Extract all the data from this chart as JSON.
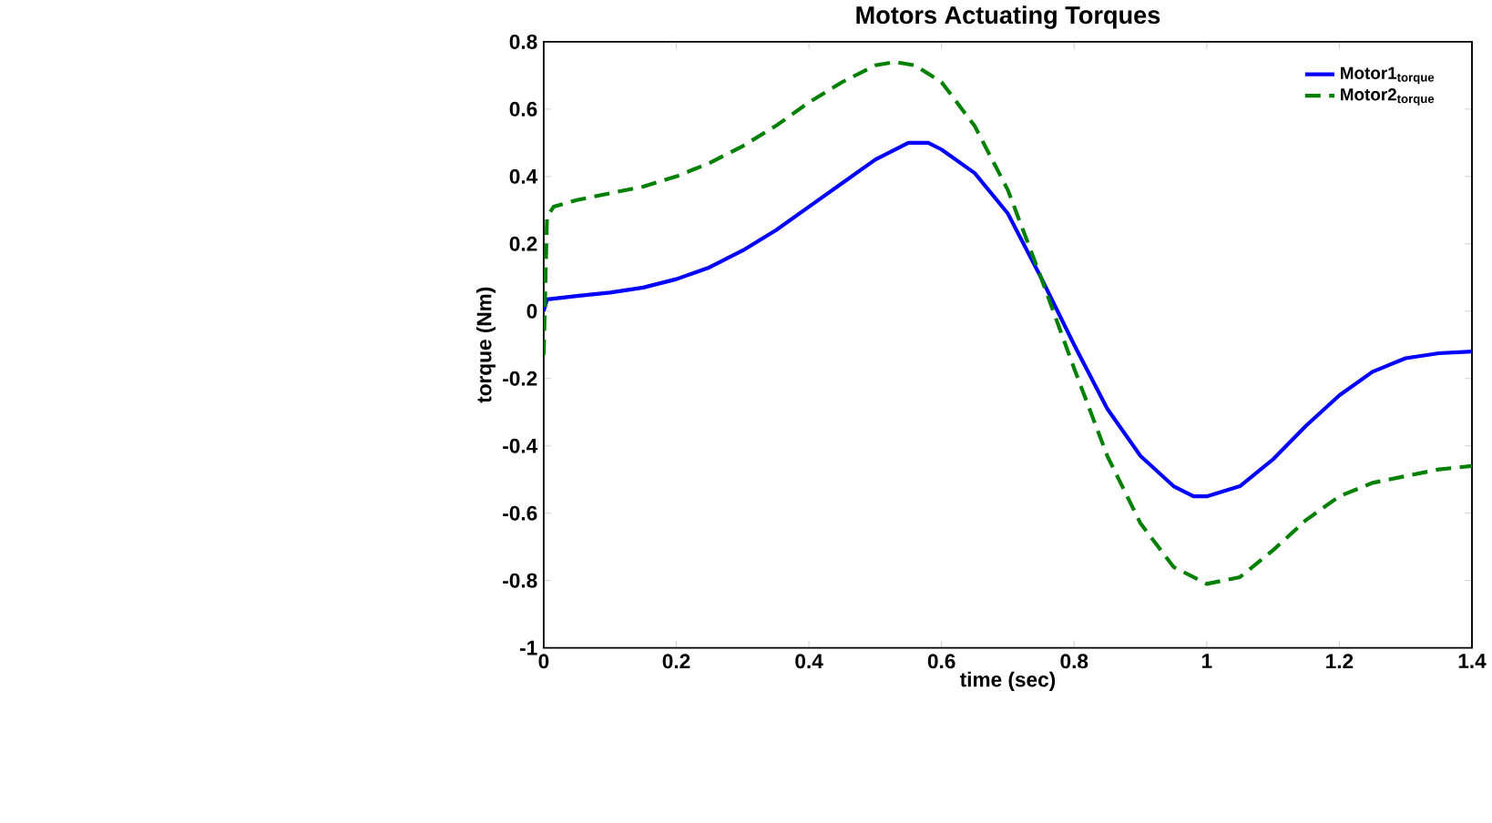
{
  "chart_data": {
    "type": "line",
    "title": "Motors Actuating Torques",
    "xlabel": "time (sec)",
    "ylabel": "torque (Nm)",
    "xlim": [
      0,
      1.4
    ],
    "ylim": [
      -1,
      0.8
    ],
    "xticks": [
      0,
      0.2,
      0.4,
      0.6,
      0.8,
      1,
      1.2,
      1.4
    ],
    "yticks": [
      -1,
      -0.8,
      -0.6,
      -0.4,
      -0.2,
      0,
      0.2,
      0.4,
      0.6,
      0.8
    ],
    "grid": false,
    "legend": "top right",
    "marker": "none",
    "series": [
      {
        "name": "Motor1$_{torque}$",
        "color": "#0000ff",
        "line_style": "solid",
        "x": [
          0,
          0.005,
          0.05,
          0.1,
          0.15,
          0.2,
          0.25,
          0.3,
          0.35,
          0.4,
          0.45,
          0.5,
          0.55,
          0.58,
          0.6,
          0.65,
          0.7,
          0.75,
          0.8,
          0.85,
          0.9,
          0.95,
          0.98,
          1.0,
          1.05,
          1.1,
          1.15,
          1.2,
          1.25,
          1.3,
          1.35,
          1.4
        ],
        "values": [
          0.0,
          0.035,
          0.045,
          0.055,
          0.07,
          0.095,
          0.13,
          0.18,
          0.24,
          0.31,
          0.38,
          0.45,
          0.5,
          0.5,
          0.48,
          0.41,
          0.29,
          0.1,
          -0.1,
          -0.29,
          -0.43,
          -0.52,
          -0.55,
          -0.55,
          -0.52,
          -0.44,
          -0.34,
          -0.25,
          -0.18,
          -0.14,
          -0.125,
          -0.12
        ]
      },
      {
        "name": "Motor2$_{torque}$",
        "color": "#008000",
        "line_style": "dashed",
        "x": [
          0,
          0.005,
          0.015,
          0.05,
          0.1,
          0.15,
          0.2,
          0.25,
          0.3,
          0.35,
          0.4,
          0.45,
          0.5,
          0.53,
          0.56,
          0.6,
          0.65,
          0.7,
          0.75,
          0.8,
          0.85,
          0.9,
          0.95,
          1.0,
          1.05,
          1.1,
          1.15,
          1.2,
          1.25,
          1.3,
          1.35,
          1.4
        ],
        "values": [
          -0.13,
          0.28,
          0.31,
          0.33,
          0.35,
          0.37,
          0.4,
          0.44,
          0.49,
          0.55,
          0.62,
          0.68,
          0.73,
          0.74,
          0.73,
          0.68,
          0.55,
          0.36,
          0.1,
          -0.17,
          -0.43,
          -0.63,
          -0.76,
          -0.81,
          -0.79,
          -0.71,
          -0.62,
          -0.55,
          -0.51,
          -0.49,
          -0.47,
          -0.46
        ]
      }
    ]
  }
}
